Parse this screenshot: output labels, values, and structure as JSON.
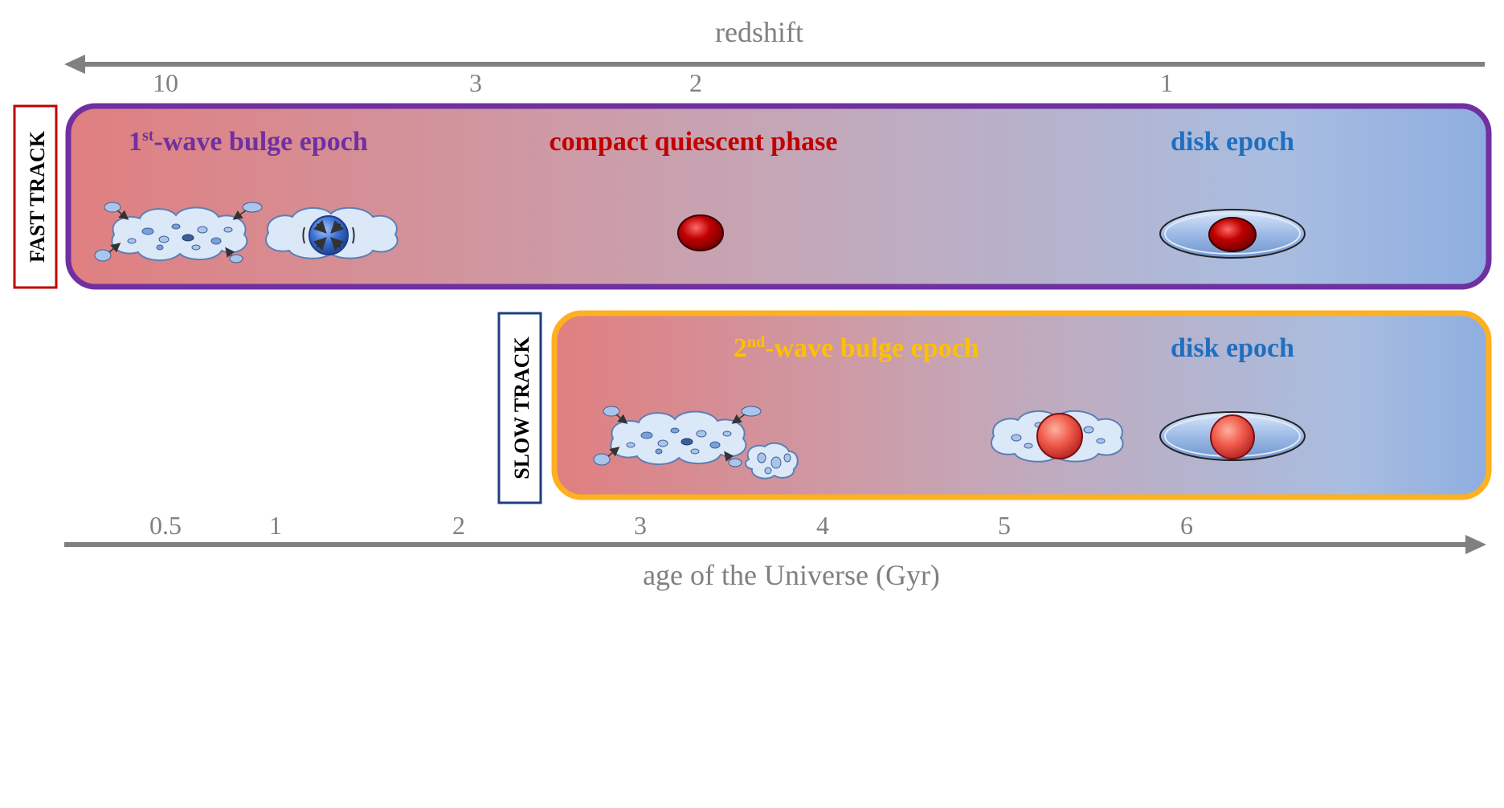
{
  "redshift_axis": {
    "label": "redshift",
    "ticks": [
      "10",
      "3",
      "2",
      "1"
    ]
  },
  "age_axis": {
    "label": "age of the Universe (Gyr)",
    "ticks": [
      "0.5",
      "1",
      "2",
      "3",
      "4",
      "5",
      "6"
    ]
  },
  "fast_track": {
    "label": "FAST TRACK",
    "border_color": "#7030a0",
    "label_box_color": "#c00000",
    "bulge_epoch": {
      "ordinal": "1",
      "sup": "st",
      "text": "-wave bulge epoch",
      "color": "#7030a0"
    },
    "compact_phase": {
      "text": "compact quiescent phase",
      "color": "#c00000"
    },
    "disk_epoch": {
      "text": "disk epoch",
      "color": "#1f6fbf"
    }
  },
  "slow_track": {
    "label": "SLOW TRACK",
    "border_color": "#ffb020",
    "label_box_color": "#1f3f7f",
    "bulge_epoch": {
      "ordinal": "2",
      "sup": "nd",
      "text": "-wave bulge epoch",
      "color": "#ffc000"
    },
    "disk_epoch": {
      "text": "disk epoch",
      "color": "#1f6fbf"
    }
  },
  "colors": {
    "gradient_start": "#e07f80",
    "gradient_mid": "#c5a6b6",
    "gradient_end": "#8eaee0",
    "axis": "#808080"
  },
  "icons": [
    "merging-clumpy-cloud-icon",
    "compacting-cloud-icon",
    "red-nugget-icon",
    "disk-galaxy-icon",
    "star-forming-bulge-icon"
  ]
}
